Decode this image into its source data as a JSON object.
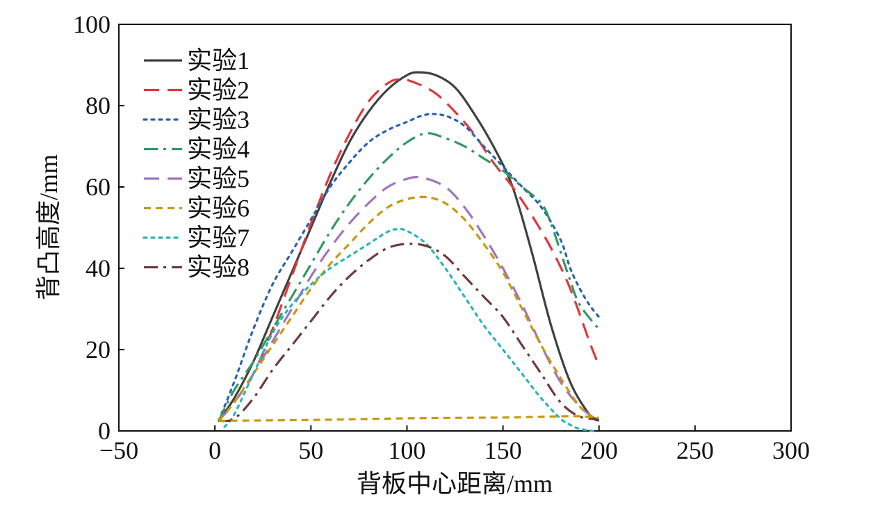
{
  "chart_data": {
    "type": "line",
    "title": "",
    "xlabel": "背板中心距离/mm",
    "ylabel": "背凸高度/mm",
    "xlim": [
      -50,
      300
    ],
    "ylim": [
      0,
      100
    ],
    "xticks": [
      "−50",
      "0",
      "50",
      "100",
      "150",
      "200",
      "250",
      "300"
    ],
    "xtick_values": [
      -50,
      0,
      50,
      100,
      150,
      200,
      250,
      300
    ],
    "yticks": [
      "0",
      "20",
      "40",
      "60",
      "80",
      "100"
    ],
    "ytick_values": [
      0,
      20,
      40,
      60,
      80,
      100
    ],
    "grid": false,
    "legend_position": "top-left",
    "series": [
      {
        "name": "实验1",
        "color": "#404040",
        "dash": "solid",
        "x": [
          2,
          10,
          20,
          30,
          40,
          50,
          60,
          70,
          80,
          90,
          100,
          106,
          115,
          125,
          135,
          145,
          155,
          165,
          175,
          185,
          195,
          200
        ],
        "y": [
          2.5,
          8,
          17,
          28,
          39,
          50,
          61,
          71,
          78.5,
          84,
          87.5,
          88.2,
          87.5,
          84.5,
          78,
          70,
          60,
          44,
          26,
          12,
          4,
          2.5
        ]
      },
      {
        "name": "实验2",
        "color": "#e0373a",
        "dash": "longdash",
        "x": [
          2,
          10,
          20,
          30,
          40,
          50,
          60,
          70,
          80,
          90,
          97,
          105,
          115,
          125,
          135,
          145,
          155,
          165,
          175,
          185,
          195,
          200
        ],
        "y": [
          2.5,
          7,
          14,
          25,
          38,
          51,
          63,
          73,
          81,
          85.5,
          86.5,
          85.5,
          83,
          78.5,
          73,
          66,
          60,
          53,
          45,
          35,
          22,
          16
        ]
      },
      {
        "name": "实验3",
        "color": "#2a62b0",
        "dash": "dot",
        "x": [
          2,
          10,
          20,
          30,
          40,
          50,
          60,
          70,
          80,
          90,
          100,
          110,
          120,
          130,
          140,
          150,
          160,
          170,
          180,
          185,
          190,
          195,
          200
        ],
        "y": [
          2.5,
          12,
          25,
          36,
          44,
          52,
          60,
          66,
          71,
          74,
          76,
          77.8,
          77.5,
          75,
          70,
          65,
          60,
          55,
          47,
          40,
          35,
          31,
          28
        ]
      },
      {
        "name": "实验4",
        "color": "#2e9a62",
        "dash": "dashdot",
        "x": [
          2,
          10,
          20,
          30,
          40,
          50,
          60,
          70,
          80,
          90,
          100,
          110,
          120,
          130,
          140,
          150,
          160,
          170,
          175,
          180,
          185,
          190,
          200
        ],
        "y": [
          2.5,
          10,
          17,
          25,
          33,
          41,
          49,
          56,
          62,
          67,
          71,
          73.2,
          72,
          70,
          67,
          64,
          60,
          56,
          51,
          44,
          37,
          31,
          25
        ]
      },
      {
        "name": "实验5",
        "color": "#a074c0",
        "dash": "longdash",
        "x": [
          2,
          10,
          20,
          30,
          40,
          50,
          60,
          70,
          80,
          90,
          100,
          108,
          120,
          130,
          140,
          150,
          160,
          170,
          180,
          190,
          198
        ],
        "y": [
          2.5,
          7,
          14,
          22,
          30,
          38,
          45,
          51,
          56,
          60,
          62,
          62.3,
          60,
          55,
          48,
          40,
          31,
          21,
          12,
          6,
          3
        ]
      },
      {
        "name": "实验6",
        "color": "#c8980f",
        "dash": "dash",
        "x": [
          2,
          10,
          20,
          30,
          40,
          50,
          60,
          70,
          80,
          90,
          100,
          110,
          120,
          130,
          140,
          150,
          160,
          170,
          180,
          190,
          198
        ],
        "y": [
          2.5,
          7,
          14,
          21,
          28,
          35,
          41,
          46,
          51,
          55,
          57,
          57.5,
          56,
          52,
          46,
          39,
          30,
          21,
          13,
          6,
          3
        ]
      },
      {
        "name": "实验7",
        "color": "#2ab5b7",
        "dash": "dot",
        "x": [
          5,
          10,
          20,
          30,
          40,
          50,
          60,
          70,
          80,
          90,
          95,
          100,
          110,
          120,
          130,
          140,
          150,
          160,
          170,
          180,
          185,
          190,
          197
        ],
        "y": [
          1,
          4,
          14,
          24,
          31,
          36,
          40,
          43,
          46,
          49,
          49.6,
          49.2,
          46,
          40,
          33,
          26,
          20,
          14,
          8,
          3,
          1.5,
          0.5,
          0
        ]
      },
      {
        "name": "实验8",
        "color": "#6e3b3b",
        "dash": "dashdot",
        "x": [
          2,
          10,
          20,
          30,
          40,
          50,
          60,
          70,
          80,
          90,
          100,
          110,
          120,
          130,
          140,
          150,
          160,
          170,
          180,
          190,
          200
        ],
        "y": [
          2.5,
          3,
          8,
          15,
          21,
          27,
          33,
          38,
          42,
          45,
          46,
          45.5,
          43,
          38,
          33,
          28,
          21,
          14,
          7,
          3.5,
          3
        ]
      },
      {
        "name": "",
        "color": "#c8980f",
        "dash": "dash",
        "x": [
          2,
          50,
          100,
          150,
          170,
          190,
          200
        ],
        "y": [
          2.5,
          2.7,
          3.1,
          3.3,
          3.5,
          3.6,
          3.2
        ]
      }
    ]
  }
}
